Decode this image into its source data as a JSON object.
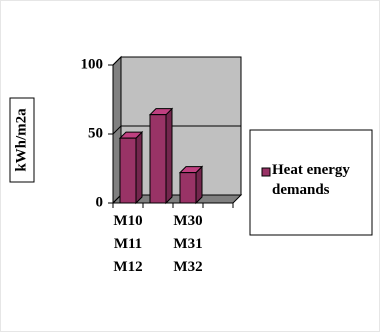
{
  "chart_data": {
    "type": "bar",
    "y_label": "kWh/m2a",
    "categories": [
      "M10\nM11\nM12",
      null,
      "M30\nM31\nM32",
      null
    ],
    "series": [
      {
        "name": "Heat energy demands",
        "color": "#993366",
        "values": [
          47,
          64,
          22,
          null
        ]
      }
    ],
    "ylim": [
      0,
      100
    ],
    "yticks": [
      0,
      50,
      100
    ],
    "grid": true,
    "legend": "right"
  }
}
